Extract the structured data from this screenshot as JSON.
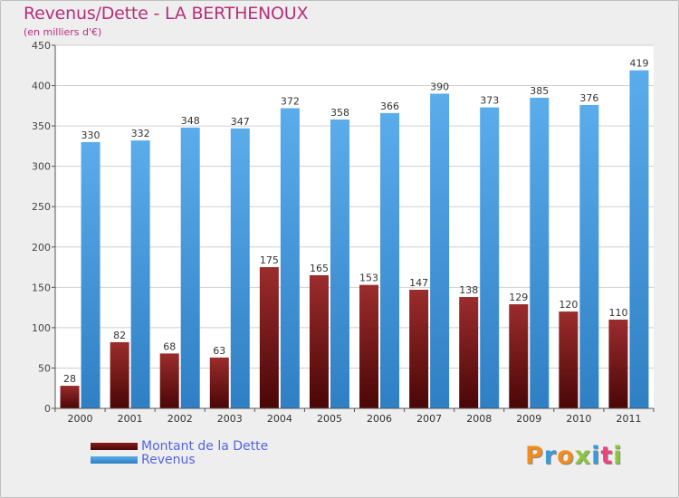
{
  "chart_data": {
    "type": "bar",
    "title": "Revenus/Dette - LA BERTHENOUX",
    "subtitle": "(en milliers d'€)",
    "categories": [
      "2000",
      "2001",
      "2002",
      "2003",
      "2004",
      "2005",
      "2006",
      "2007",
      "2008",
      "2009",
      "2010",
      "2011"
    ],
    "series": [
      {
        "name": "Montant de la Dette",
        "color": "#7a1414",
        "values": [
          28,
          82,
          68,
          63,
          175,
          165,
          153,
          147,
          138,
          129,
          120,
          110
        ]
      },
      {
        "name": "Revenus",
        "color": "#4d9fe0",
        "values": [
          330,
          332,
          348,
          347,
          372,
          358,
          366,
          390,
          373,
          385,
          376,
          419
        ]
      }
    ],
    "ylim": [
      0,
      450
    ],
    "yticks": [
      0,
      50,
      100,
      150,
      200,
      250,
      300,
      350,
      400,
      450
    ],
    "grid": true,
    "legend_position": "bottom-left"
  },
  "logo_text": "Proxiti",
  "logo_colors": [
    "#f28c1e",
    "#3a9ad9",
    "#f28c1e",
    "#8cc63f",
    "#3a9ad9",
    "#e8467c",
    "#8cc63f"
  ]
}
